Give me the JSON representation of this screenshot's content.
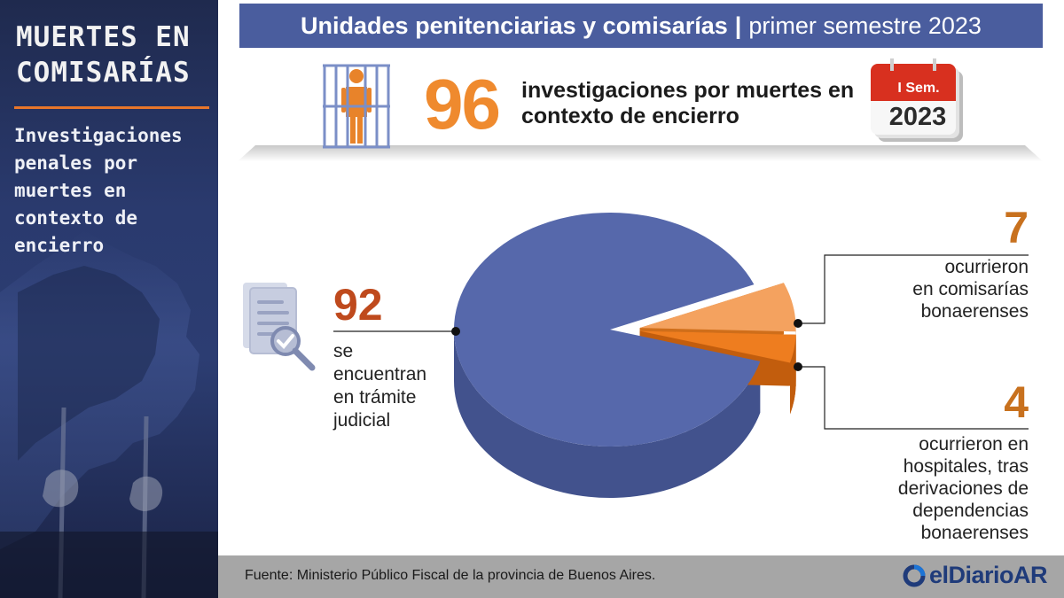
{
  "sidebar": {
    "title_lines": [
      "MUERTES EN",
      "COMISARÍAS"
    ],
    "subtitle": "Investigaciones penales por muertes en contexto de encierro"
  },
  "header": {
    "title_strong": "Unidades penitenciarias y comisarías",
    "separator": "|",
    "title_light": "primer semestre 2023"
  },
  "summary": {
    "total": "96",
    "description": "investigaciones por muertes en contexto de encierro",
    "calendar_label": "I Sem.",
    "calendar_year": "2023",
    "jail_icon": "person-behind-bars-icon",
    "calendar_icon": "calendar-icon"
  },
  "chart_data": {
    "type": "pie",
    "total": 96,
    "slices": [
      {
        "value": 92,
        "label_lines": [
          "se",
          "encuentran",
          "en trámite",
          "judicial"
        ],
        "color": "#5668ab",
        "side_color": "#42528d",
        "number_color": "#bf4a1d"
      },
      {
        "value": 7,
        "label_lines": [
          "ocurrieron",
          "en comisarías",
          "bonaerenses"
        ],
        "color": "#f4a25f",
        "side_color": "#cf6e1a",
        "number_color": "#c8711e"
      },
      {
        "value": 4,
        "label_lines": [
          "ocurrieron en",
          "hospitales, tras",
          "derivaciones de",
          "dependencias",
          "bonaerenses"
        ],
        "color": "#ee7d1f",
        "side_color": "#c25d0d",
        "number_color": "#c8711e"
      }
    ],
    "document_icon": "document-search-icon"
  },
  "colors": {
    "header_bg": "#4a5d9e",
    "accent_orange": "#ef8a2e",
    "footer_bg": "#a6a6a6",
    "brand_blue": "#1f3b7a"
  },
  "footer": {
    "source": "Fuente: Ministerio Público Fiscal de la provincia de Buenos Aires.",
    "brand": "elDiarioAR",
    "brand_icon": "eldiarioar-logo-icon"
  }
}
